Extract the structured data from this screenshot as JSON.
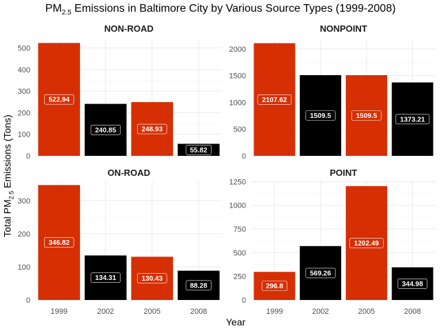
{
  "title_prefix": "PM",
  "title_sub": "2.5",
  "title_suffix": " Emissions in Baltimore City by Various Source Types (1999-2008)",
  "ylabel_prefix": "Total PM",
  "ylabel_sub": "2.5",
  "ylabel_suffix": " Emissions (Tons)",
  "xlabel": "Year",
  "colors": {
    "red": "#d62f04",
    "black": "#000000"
  },
  "chart_data": [
    {
      "type": "bar",
      "title": "NON-ROAD",
      "categories": [
        "1999",
        "2002",
        "2005",
        "2008"
      ],
      "values": [
        522.94,
        240.85,
        248.93,
        55.82
      ],
      "labels": [
        "522.94",
        "240.85",
        "248.93",
        "55.82"
      ],
      "bar_colors": [
        "red",
        "black",
        "red",
        "black"
      ],
      "ylim": [
        0,
        540
      ],
      "yticks": [
        0,
        100,
        200,
        300,
        400,
        500
      ],
      "show_x_ticks": false
    },
    {
      "type": "bar",
      "title": "NONPOINT",
      "categories": [
        "1999",
        "2002",
        "2005",
        "2008"
      ],
      "values": [
        2107.62,
        1509.5,
        1509.5,
        1373.21
      ],
      "labels": [
        "2107.62",
        "1509.5",
        "1509.5",
        "1373.21"
      ],
      "bar_colors": [
        "red",
        "black",
        "red",
        "black"
      ],
      "ylim": [
        0,
        2180
      ],
      "yticks": [
        0,
        500,
        1000,
        1500,
        2000
      ],
      "show_x_ticks": false
    },
    {
      "type": "bar",
      "title": "ON-ROAD",
      "categories": [
        "1999",
        "2002",
        "2005",
        "2008"
      ],
      "values": [
        346.82,
        134.31,
        130.43,
        88.28
      ],
      "labels": [
        "346.82",
        "134.31",
        "130.43",
        "88.28"
      ],
      "bar_colors": [
        "red",
        "black",
        "red",
        "black"
      ],
      "ylim": [
        0,
        360
      ],
      "yticks": [
        0,
        100,
        200,
        300
      ],
      "show_x_ticks": true
    },
    {
      "type": "bar",
      "title": "POINT",
      "categories": [
        "1999",
        "2002",
        "2005",
        "2008"
      ],
      "values": [
        296.8,
        569.26,
        1202.49,
        344.98
      ],
      "labels": [
        "296.8",
        "569.26",
        "1202.49",
        "344.98"
      ],
      "bar_colors": [
        "red",
        "black",
        "red",
        "black"
      ],
      "ylim": [
        0,
        1260
      ],
      "yticks": [
        0,
        250,
        500,
        750,
        1000,
        1250
      ],
      "show_x_ticks": true
    }
  ]
}
